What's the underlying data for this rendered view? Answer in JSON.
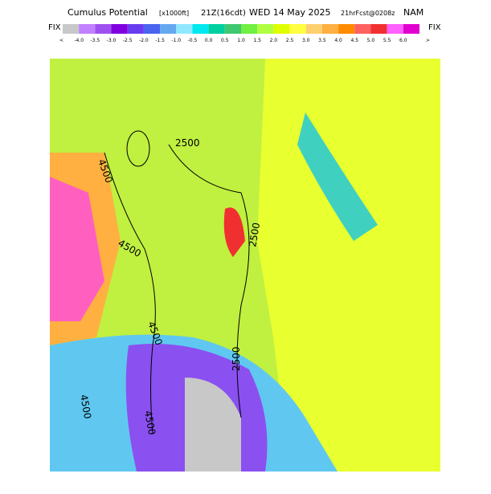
{
  "header": {
    "title": "Cumulus Potential",
    "units": "[x1000ft]",
    "time": "21Z(16cdt)",
    "date": "WED 14 May 2025",
    "forecast": "21hrFcst@0208z",
    "model": "NAM"
  },
  "colorbar": {
    "left": "FIX",
    "right": "FIX",
    "below": "<",
    "above": ">",
    "colors": [
      "#c8c8c8",
      "#c080ff",
      "#a050f0",
      "#8000e0",
      "#6a3cf0",
      "#4a64f0",
      "#64a8f0",
      "#90e8ff",
      "#00e8f0",
      "#00d0a0",
      "#40c870",
      "#70f040",
      "#b0ff40",
      "#e0ff00",
      "#ffff40",
      "#ffd070",
      "#ffb040",
      "#ff8c00",
      "#ff6060",
      "#f03030",
      "#ff60ff",
      "#e000d0"
    ],
    "labels": [
      "-4.0",
      "-3.5",
      "-3.0",
      "-2.5",
      "-2.0",
      "-1.5",
      "-1.0",
      "-0.5",
      "0.0",
      "0.5",
      "1.0",
      "1.5",
      "2.0",
      "2.5",
      "3.0",
      "3.5",
      "4.0",
      "4.5",
      "5.0",
      "5.5",
      "6.0"
    ]
  },
  "contour_labels": [
    "2500",
    "4500",
    "4500",
    "2500",
    "4500",
    "2500",
    "4500",
    "4500"
  ]
}
